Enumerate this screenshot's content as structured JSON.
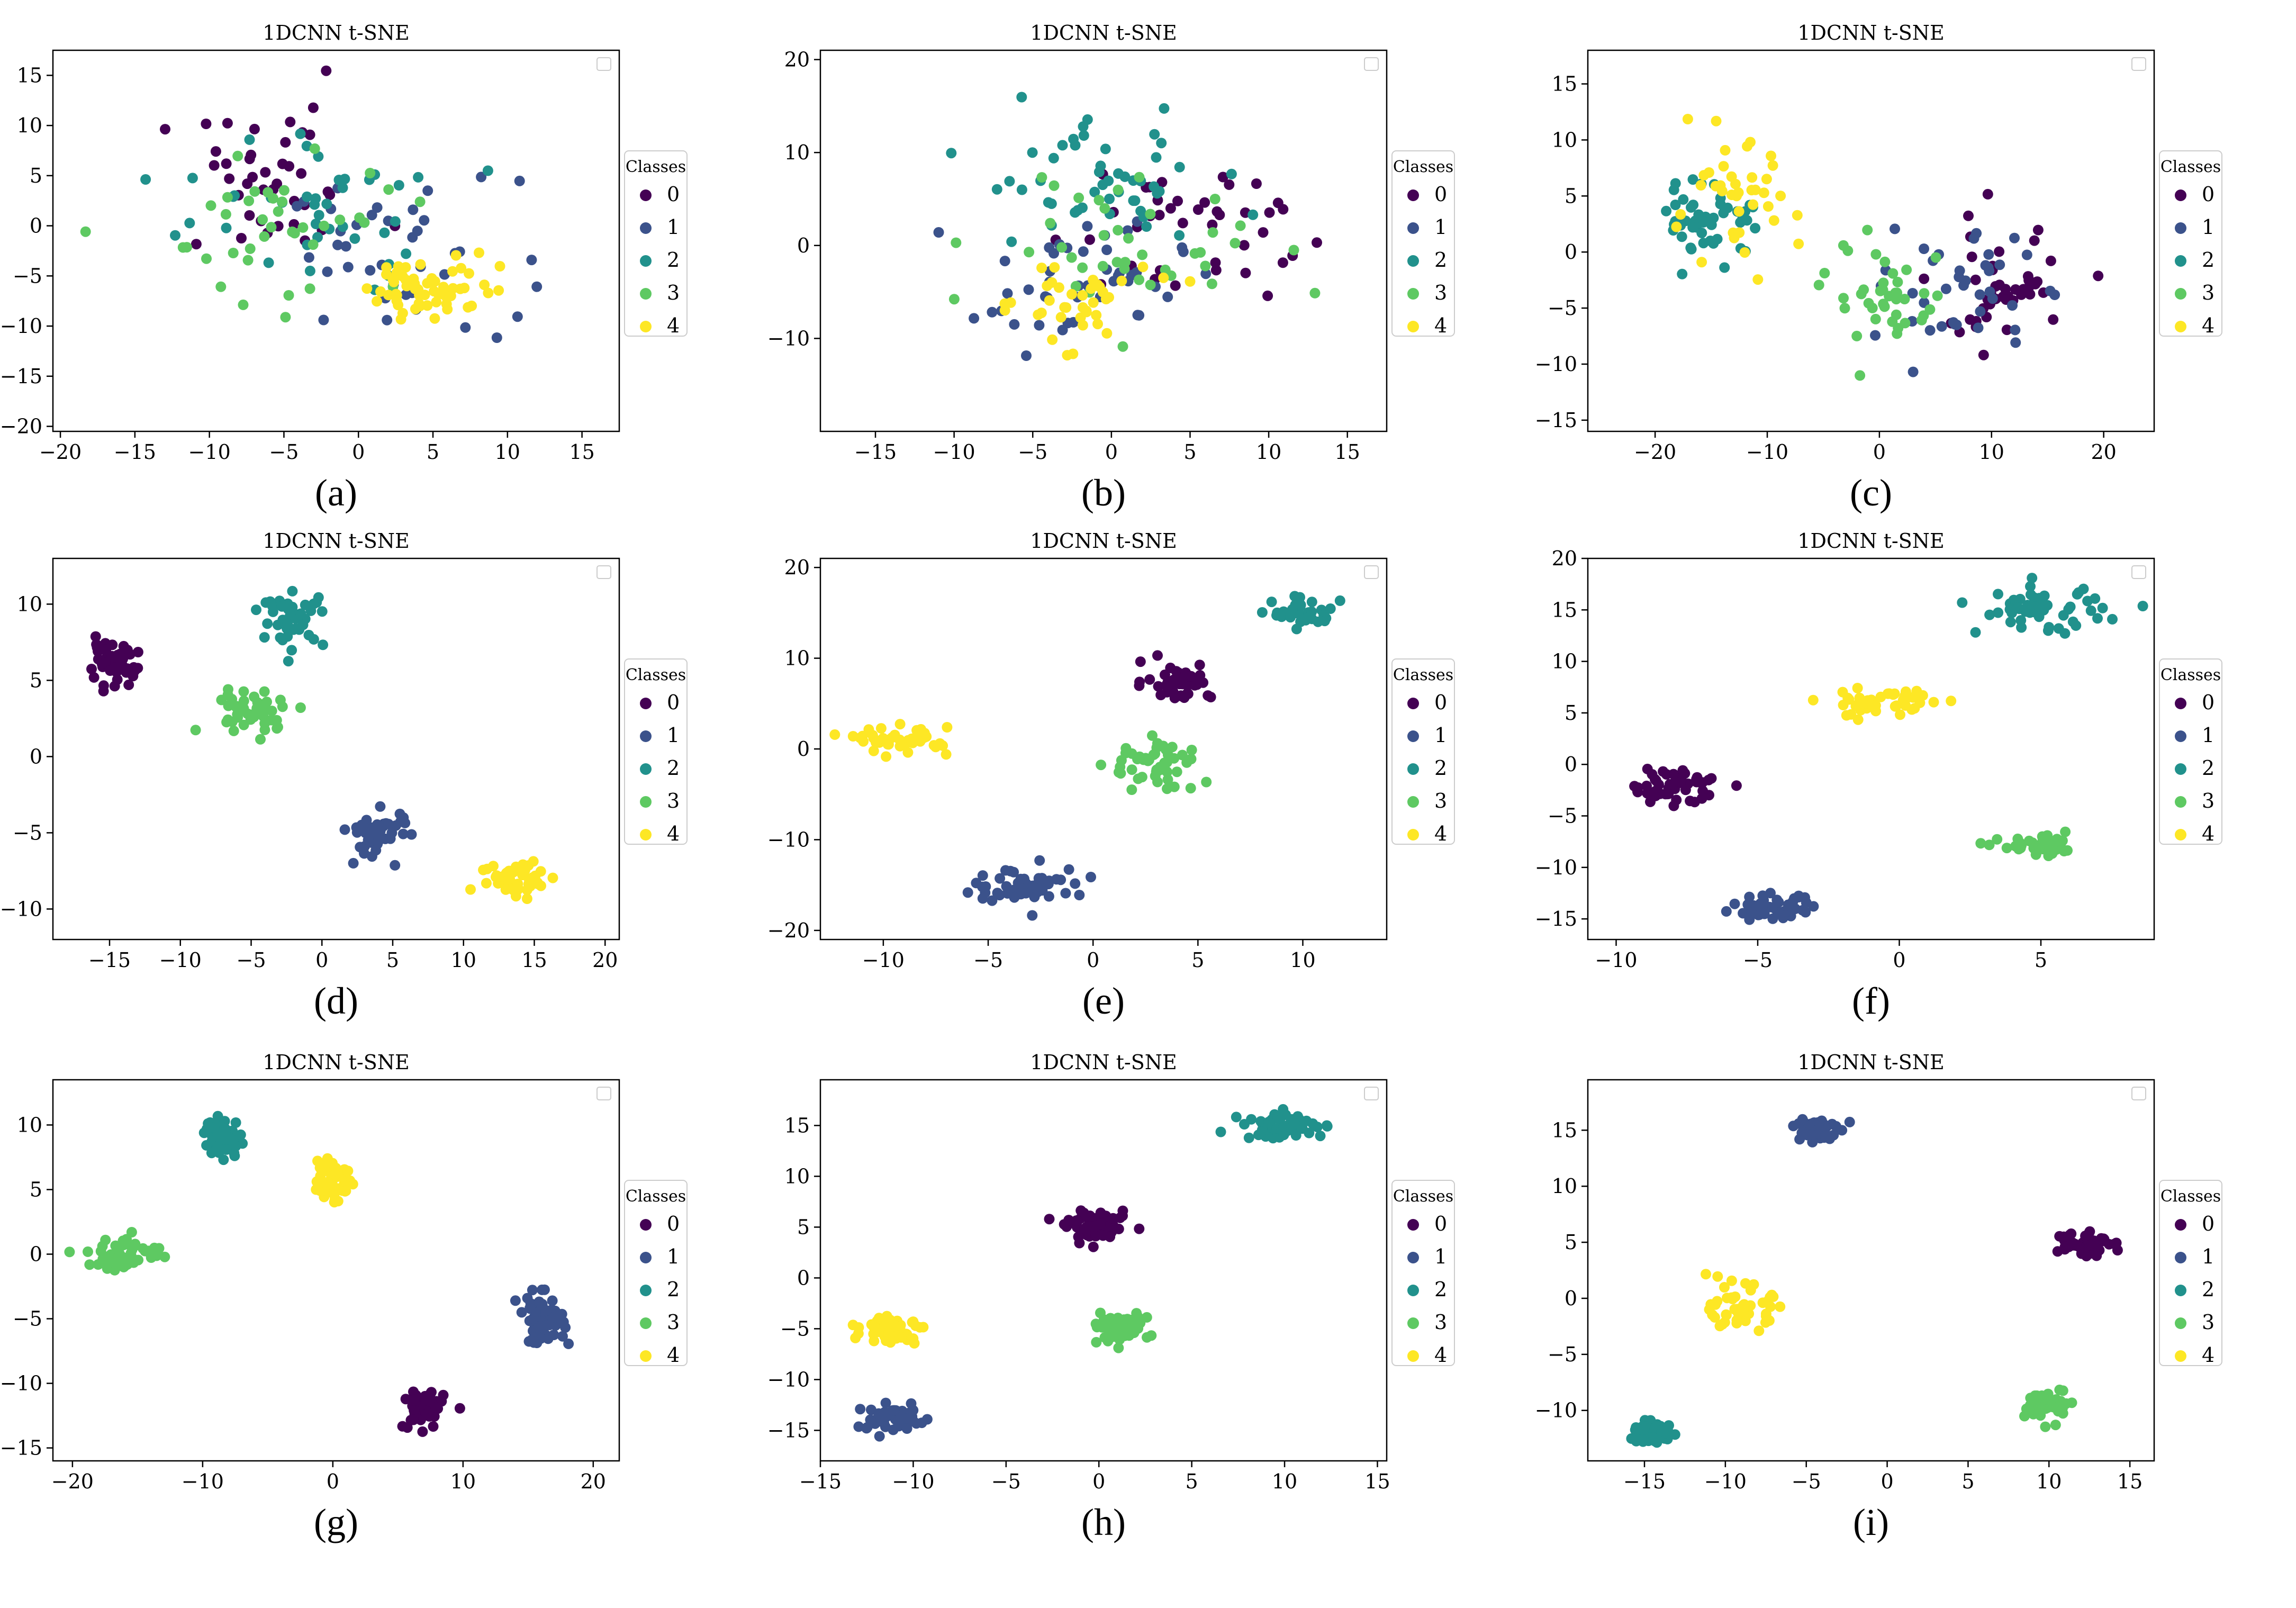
{
  "colors": {
    "classes": [
      "#440154",
      "#3b528b",
      "#21918c",
      "#5ec962",
      "#fde725"
    ],
    "axis": "#000000",
    "background": "#ffffff"
  },
  "figure": {
    "captions": [
      "(a)",
      "(b)",
      "(c)",
      "(d)",
      "(e)",
      "(f)",
      "(g)",
      "(h)",
      "(i)"
    ]
  },
  "chart_data": [
    {
      "type": "scatter",
      "title": "1DCNN t-SNE",
      "caption": "(a)",
      "legend_title": "Classes",
      "legend_labels": [
        "0",
        "1",
        "2",
        "3",
        "4"
      ],
      "legend_position": "outside-right",
      "xlim": [
        -20.5,
        17.5
      ],
      "ylim": [
        -20.5,
        17.5
      ],
      "xticks": [
        -20,
        -15,
        -10,
        -5,
        0,
        5,
        10,
        15
      ],
      "yticks": [
        -20,
        -15,
        -10,
        -5,
        0,
        5,
        10,
        15
      ],
      "clusters": [
        {
          "class": 0,
          "center": [
            -6,
            4
          ],
          "spread": [
            7,
            7
          ],
          "n": 40
        },
        {
          "class": 1,
          "center": [
            3,
            -3
          ],
          "spread": [
            7,
            7
          ],
          "n": 40
        },
        {
          "class": 2,
          "center": [
            -3,
            1
          ],
          "spread": [
            8,
            7
          ],
          "n": 40
        },
        {
          "class": 3,
          "center": [
            -4,
            0
          ],
          "spread": [
            8,
            8
          ],
          "n": 40
        },
        {
          "class": 4,
          "center": [
            5,
            -6
          ],
          "spread": [
            4,
            3
          ],
          "n": 60
        }
      ]
    },
    {
      "type": "scatter",
      "title": "1DCNN t-SNE",
      "caption": "(b)",
      "legend_title": "Classes",
      "legend_labels": [
        "0",
        "1",
        "2",
        "3",
        "4"
      ],
      "legend_position": "outside-right",
      "xlim": [
        -18.5,
        17.5
      ],
      "ylim": [
        -20,
        21
      ],
      "xticks": [
        -15,
        -10,
        -5,
        0,
        5,
        10,
        15
      ],
      "yticks": [
        -10,
        0,
        10,
        20
      ],
      "clusters": [
        {
          "class": 0,
          "center": [
            4,
            2
          ],
          "spread": [
            7,
            7
          ],
          "n": 40
        },
        {
          "class": 1,
          "center": [
            -2,
            -4
          ],
          "spread": [
            6,
            6
          ],
          "n": 45
        },
        {
          "class": 2,
          "center": [
            -1,
            7
          ],
          "spread": [
            7,
            6
          ],
          "n": 50
        },
        {
          "class": 3,
          "center": [
            1,
            0
          ],
          "spread": [
            8,
            8
          ],
          "n": 40
        },
        {
          "class": 4,
          "center": [
            -3,
            -6
          ],
          "spread": [
            5,
            4
          ],
          "n": 40
        }
      ]
    },
    {
      "type": "scatter",
      "title": "1DCNN t-SNE",
      "caption": "(c)",
      "legend_title": "Classes",
      "legend_labels": [
        "0",
        "1",
        "2",
        "3",
        "4"
      ],
      "legend_position": "outside-right",
      "xlim": [
        -26,
        24.5
      ],
      "ylim": [
        -16,
        18
      ],
      "xticks": [
        -20,
        -10,
        0,
        10,
        20
      ],
      "yticks": [
        -15,
        -10,
        -5,
        0,
        5,
        10,
        15
      ],
      "clusters": [
        {
          "class": 0,
          "center": [
            11,
            -3
          ],
          "spread": [
            6,
            5
          ],
          "n": 45
        },
        {
          "class": 1,
          "center": [
            7,
            -4
          ],
          "spread": [
            6,
            5
          ],
          "n": 40
        },
        {
          "class": 2,
          "center": [
            -15,
            3
          ],
          "spread": [
            4,
            3
          ],
          "n": 50
        },
        {
          "class": 3,
          "center": [
            1,
            -4
          ],
          "spread": [
            5,
            5
          ],
          "n": 40
        },
        {
          "class": 4,
          "center": [
            -13,
            4
          ],
          "spread": [
            5,
            5
          ],
          "n": 40
        }
      ]
    },
    {
      "type": "scatter",
      "title": "1DCNN t-SNE",
      "caption": "(d)",
      "legend_title": "Classes",
      "legend_labels": [
        "0",
        "1",
        "2",
        "3",
        "4"
      ],
      "legend_position": "outside-right",
      "xlim": [
        -19,
        21
      ],
      "ylim": [
        -12,
        13
      ],
      "xticks": [
        -15,
        -10,
        -5,
        0,
        5,
        10,
        15,
        20
      ],
      "yticks": [
        -10,
        -5,
        0,
        5,
        10
      ],
      "clusters": [
        {
          "class": 0,
          "center": [
            -15,
            6
          ],
          "spread": [
            1.8,
            1.3
          ],
          "n": 45
        },
        {
          "class": 1,
          "center": [
            4,
            -5
          ],
          "spread": [
            2,
            1.5
          ],
          "n": 45
        },
        {
          "class": 2,
          "center": [
            -2,
            9
          ],
          "spread": [
            2,
            1.5
          ],
          "n": 45
        },
        {
          "class": 3,
          "center": [
            -5,
            3
          ],
          "spread": [
            3,
            1.3
          ],
          "n": 45
        },
        {
          "class": 4,
          "center": [
            14,
            -8
          ],
          "spread": [
            2.5,
            1.2
          ],
          "n": 50
        }
      ]
    },
    {
      "type": "scatter",
      "title": "1DCNN t-SNE",
      "caption": "(e)",
      "legend_title": "Classes",
      "legend_labels": [
        "0",
        "1",
        "2",
        "3",
        "4"
      ],
      "legend_position": "outside-right",
      "xlim": [
        -13,
        14
      ],
      "ylim": [
        -21,
        21
      ],
      "xticks": [
        -10,
        -5,
        0,
        5,
        10
      ],
      "yticks": [
        -20,
        -10,
        0,
        10,
        20
      ],
      "clusters": [
        {
          "class": 0,
          "center": [
            4,
            7.5
          ],
          "spread": [
            1.5,
            1.8
          ],
          "n": 45
        },
        {
          "class": 1,
          "center": [
            -3,
            -15
          ],
          "spread": [
            2.5,
            1.8
          ],
          "n": 55
        },
        {
          "class": 2,
          "center": [
            10,
            15
          ],
          "spread": [
            1.3,
            1.4
          ],
          "n": 45
        },
        {
          "class": 3,
          "center": [
            3,
            -2
          ],
          "spread": [
            2,
            3
          ],
          "n": 50
        },
        {
          "class": 4,
          "center": [
            -9,
            1
          ],
          "spread": [
            2,
            1.2
          ],
          "n": 45
        }
      ]
    },
    {
      "type": "scatter",
      "title": "1DCNN t-SNE",
      "caption": "(f)",
      "legend_title": "Classes",
      "legend_labels": [
        "0",
        "1",
        "2",
        "3",
        "4"
      ],
      "legend_position": "outside-right",
      "xlim": [
        -11,
        9
      ],
      "ylim": [
        -17,
        20
      ],
      "xticks": [
        -10,
        -5,
        0,
        5
      ],
      "yticks": [
        -15,
        -10,
        -5,
        0,
        5,
        10,
        15,
        20
      ],
      "clusters": [
        {
          "class": 0,
          "center": [
            -8,
            -2
          ],
          "spread": [
            1.5,
            1.5
          ],
          "n": 55
        },
        {
          "class": 1,
          "center": [
            -4.5,
            -14
          ],
          "spread": [
            1.3,
            1.1
          ],
          "n": 50
        },
        {
          "class": 2,
          "center": [
            5,
            15
          ],
          "spread": [
            2,
            2
          ],
          "n": 55
        },
        {
          "class": 3,
          "center": [
            5,
            -8
          ],
          "spread": [
            1.3,
            0.8
          ],
          "n": 45
        },
        {
          "class": 4,
          "center": [
            -0.5,
            6
          ],
          "spread": [
            2,
            1.5
          ],
          "n": 45
        }
      ]
    },
    {
      "type": "scatter",
      "title": "1DCNN t-SNE",
      "caption": "(g)",
      "legend_title": "Classes",
      "legend_labels": [
        "0",
        "1",
        "2",
        "3",
        "4"
      ],
      "legend_position": "outside-right",
      "xlim": [
        -21.5,
        22
      ],
      "ylim": [
        -16,
        13.5
      ],
      "xticks": [
        -20,
        -10,
        0,
        10,
        20
      ],
      "yticks": [
        -15,
        -10,
        -5,
        0,
        5,
        10
      ],
      "clusters": [
        {
          "class": 0,
          "center": [
            7,
            -12
          ],
          "spread": [
            1.4,
            1.4
          ],
          "n": 55
        },
        {
          "class": 1,
          "center": [
            16,
            -5
          ],
          "spread": [
            1.6,
            1.7
          ],
          "n": 60
        },
        {
          "class": 2,
          "center": [
            -8.5,
            9
          ],
          "spread": [
            1.3,
            1.4
          ],
          "n": 55
        },
        {
          "class": 3,
          "center": [
            -16,
            0
          ],
          "spread": [
            2.5,
            1.2
          ],
          "n": 55
        },
        {
          "class": 4,
          "center": [
            0,
            6
          ],
          "spread": [
            1.3,
            1.8
          ],
          "n": 55
        }
      ]
    },
    {
      "type": "scatter",
      "title": "1DCNN t-SNE",
      "caption": "(h)",
      "legend_title": "Classes",
      "legend_labels": [
        "0",
        "1",
        "2",
        "3",
        "4"
      ],
      "legend_position": "outside-right",
      "xlim": [
        -15,
        15.5
      ],
      "ylim": [
        -18,
        19.5
      ],
      "xticks": [
        -15,
        -10,
        -5,
        0,
        5,
        10,
        15
      ],
      "yticks": [
        -15,
        -10,
        -5,
        0,
        5,
        10,
        15
      ],
      "clusters": [
        {
          "class": 0,
          "center": [
            0,
            5
          ],
          "spread": [
            1.6,
            1.2
          ],
          "n": 55
        },
        {
          "class": 1,
          "center": [
            -11,
            -14
          ],
          "spread": [
            1.8,
            1.2
          ],
          "n": 55
        },
        {
          "class": 2,
          "center": [
            10,
            15
          ],
          "spread": [
            2,
            1.2
          ],
          "n": 55
        },
        {
          "class": 3,
          "center": [
            1,
            -5
          ],
          "spread": [
            1.5,
            1.2
          ],
          "n": 55
        },
        {
          "class": 4,
          "center": [
            -11,
            -5
          ],
          "spread": [
            1.5,
            1.3
          ],
          "n": 50
        }
      ]
    },
    {
      "type": "scatter",
      "title": "1DCNN t-SNE",
      "caption": "(i)",
      "legend_title": "Classes",
      "legend_labels": [
        "0",
        "1",
        "2",
        "3",
        "4"
      ],
      "legend_position": "outside-right",
      "xlim": [
        -18.5,
        16.5
      ],
      "ylim": [
        -14.5,
        19.5
      ],
      "xticks": [
        -15,
        -10,
        -5,
        0,
        5,
        10,
        15
      ],
      "yticks": [
        -10,
        -5,
        0,
        5,
        10,
        15
      ],
      "clusters": [
        {
          "class": 0,
          "center": [
            12,
            5
          ],
          "spread": [
            1.5,
            1.1
          ],
          "n": 60
        },
        {
          "class": 1,
          "center": [
            -4.5,
            15
          ],
          "spread": [
            1.2,
            1.1
          ],
          "n": 55
        },
        {
          "class": 2,
          "center": [
            -14.5,
            -12
          ],
          "spread": [
            1.3,
            0.9
          ],
          "n": 50
        },
        {
          "class": 3,
          "center": [
            10,
            -9.5
          ],
          "spread": [
            1.2,
            1.3
          ],
          "n": 50
        },
        {
          "class": 4,
          "center": [
            -9,
            -1
          ],
          "spread": [
            1.7,
            1.8
          ],
          "n": 55
        }
      ]
    }
  ]
}
